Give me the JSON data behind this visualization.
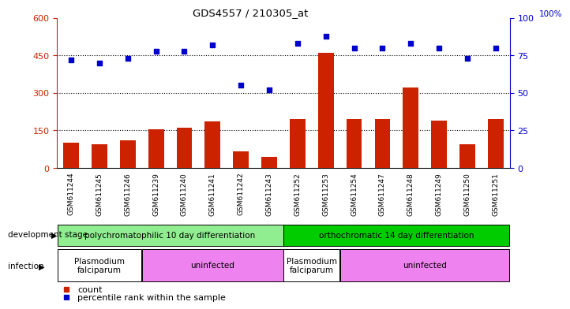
{
  "title": "GDS4557 / 210305_at",
  "samples": [
    "GSM611244",
    "GSM611245",
    "GSM611246",
    "GSM611239",
    "GSM611240",
    "GSM611241",
    "GSM611242",
    "GSM611243",
    "GSM611252",
    "GSM611253",
    "GSM611254",
    "GSM611247",
    "GSM611248",
    "GSM611249",
    "GSM611250",
    "GSM611251"
  ],
  "counts": [
    100,
    95,
    110,
    155,
    160,
    185,
    65,
    45,
    195,
    460,
    195,
    195,
    320,
    190,
    95,
    195
  ],
  "percentiles": [
    72,
    70,
    73,
    78,
    78,
    82,
    55,
    52,
    83,
    88,
    80,
    80,
    83,
    80,
    73,
    80
  ],
  "bar_color": "#cc2200",
  "dot_color": "#0000cc",
  "ylim_left": [
    0,
    600
  ],
  "ylim_right": [
    0,
    100
  ],
  "yticks_left": [
    0,
    150,
    300,
    450,
    600
  ],
  "yticks_right": [
    0,
    25,
    50,
    75,
    100
  ],
  "grid_values": [
    150,
    300,
    450
  ],
  "plot_bg": "#ffffff",
  "xtick_bg": "#d0d0d0",
  "stage_colors": [
    "#90ee90",
    "#00cc00"
  ],
  "inf_colors_white": "#ffffff",
  "inf_colors_purple": "#ee82ee",
  "left_axis_color": "#cc2200",
  "right_axis_color": "#0000cc",
  "legend_count_label": "count",
  "legend_pct_label": "percentile rank within the sample",
  "dev_label": "development stage",
  "inf_label": "infection",
  "stage_labels": [
    "polychromatophilic 10 day differentiation",
    "orthochromatic 14 day differentiation"
  ],
  "inf_starts": [
    0,
    3,
    8,
    10
  ],
  "inf_ends": [
    3,
    8,
    10,
    16
  ],
  "inf_labels": [
    "Plasmodium\nfalciparum",
    "uninfected",
    "Plasmodium\nfalciparum",
    "uninfected"
  ],
  "inf_box_colors": [
    "white",
    "#ee82ee",
    "white",
    "#ee82ee"
  ]
}
